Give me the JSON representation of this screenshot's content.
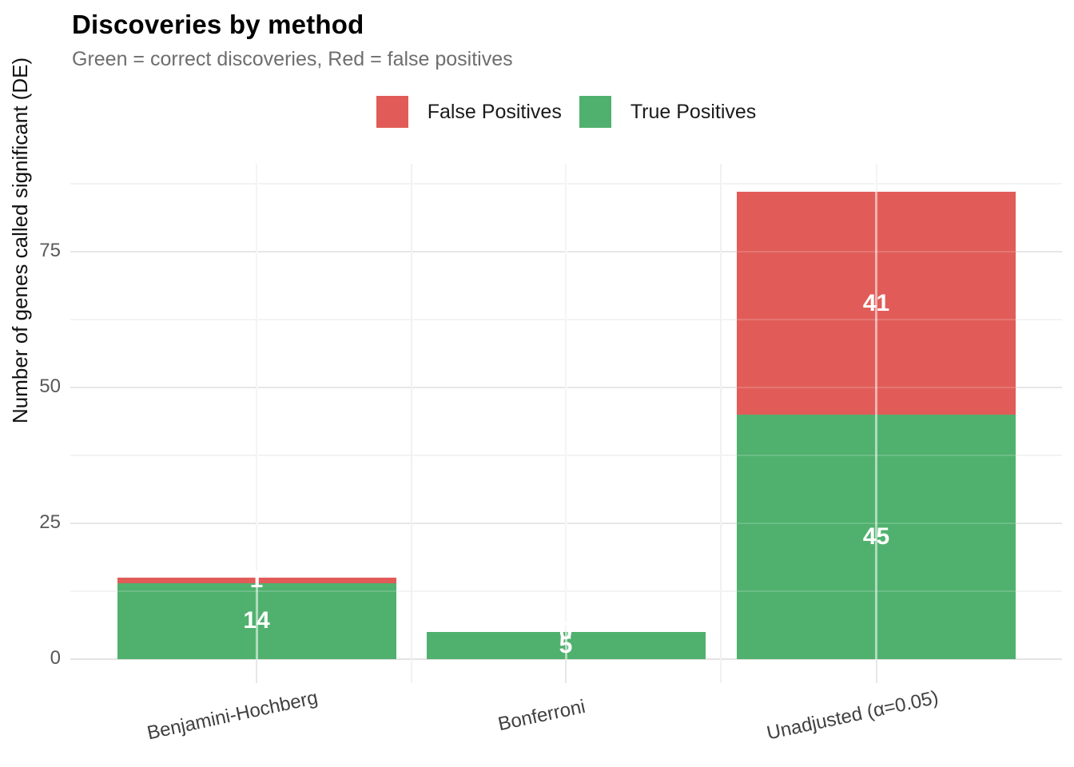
{
  "header": {
    "title": "Discoveries by method",
    "subtitle": "Green = correct discoveries, Red = false positives"
  },
  "chart_data": {
    "type": "bar",
    "stacked": true,
    "title": "Discoveries by method",
    "subtitle": "Green = correct discoveries, Red = false positives",
    "categories": [
      "Benjamini-Hochberg",
      "Bonferroni",
      "Unadjusted (α=0.05)"
    ],
    "series": [
      {
        "name": "False Positives",
        "color": "#e15c58",
        "values": [
          1,
          0,
          41
        ]
      },
      {
        "name": "True Positives",
        "color": "#50b16e",
        "values": [
          14,
          5,
          45
        ]
      }
    ],
    "stack_order_bottom_to_top": [
      "True Positives",
      "False Positives"
    ],
    "bar_value_labels_shown": true,
    "xlabel": "",
    "ylabel": "Number of genes called significant (DE)",
    "yticks": [
      0,
      25,
      50,
      75
    ],
    "yminorticks": [
      12.5,
      37.5,
      62.5,
      87.5
    ],
    "ylim": [
      0,
      91
    ],
    "grid": "horizontal major+minor, vertical major at category centers",
    "legend_position": "top-center",
    "x_tick_label_rotation_deg": -12,
    "background": "#ffffff"
  }
}
